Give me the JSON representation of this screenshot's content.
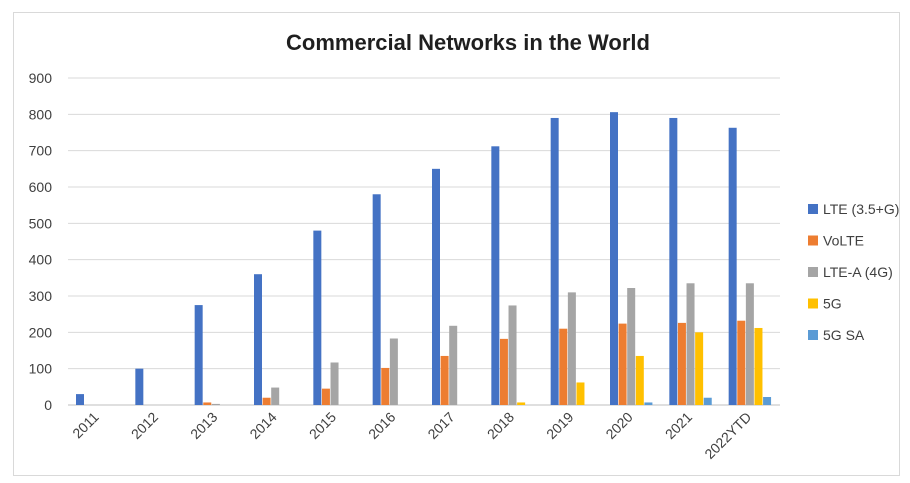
{
  "chart_data": {
    "type": "bar",
    "title": "Commercial Networks in the World",
    "xlabel": "",
    "ylabel": "",
    "ylim": [
      0,
      900
    ],
    "yticks": [
      0,
      100,
      200,
      300,
      400,
      500,
      600,
      700,
      800,
      900
    ],
    "grid": true,
    "legend_position": "right",
    "categories": [
      "2011",
      "2012",
      "2013",
      "2014",
      "2015",
      "2016",
      "2017",
      "2018",
      "2019",
      "2020",
      "2021",
      "2022YTD"
    ],
    "series": [
      {
        "name": "LTE (3.5+G)",
        "color": "#4472c4",
        "values": [
          30,
          100,
          275,
          360,
          480,
          580,
          650,
          712,
          790,
          806,
          790,
          763
        ]
      },
      {
        "name": "VoLTE",
        "color": "#ed7d31",
        "values": [
          0,
          0,
          7,
          20,
          45,
          102,
          135,
          182,
          210,
          224,
          226,
          232
        ]
      },
      {
        "name": "LTE-A (4G)",
        "color": "#a5a5a5",
        "values": [
          0,
          0,
          3,
          48,
          117,
          183,
          218,
          274,
          310,
          322,
          335,
          335
        ]
      },
      {
        "name": "5G",
        "color": "#ffc000",
        "values": [
          0,
          0,
          0,
          0,
          0,
          0,
          0,
          7,
          62,
          135,
          200,
          212
        ]
      },
      {
        "name": "5G SA",
        "color": "#5b9bd5",
        "values": [
          0,
          0,
          0,
          0,
          0,
          0,
          0,
          0,
          0,
          7,
          20,
          22
        ]
      }
    ]
  }
}
